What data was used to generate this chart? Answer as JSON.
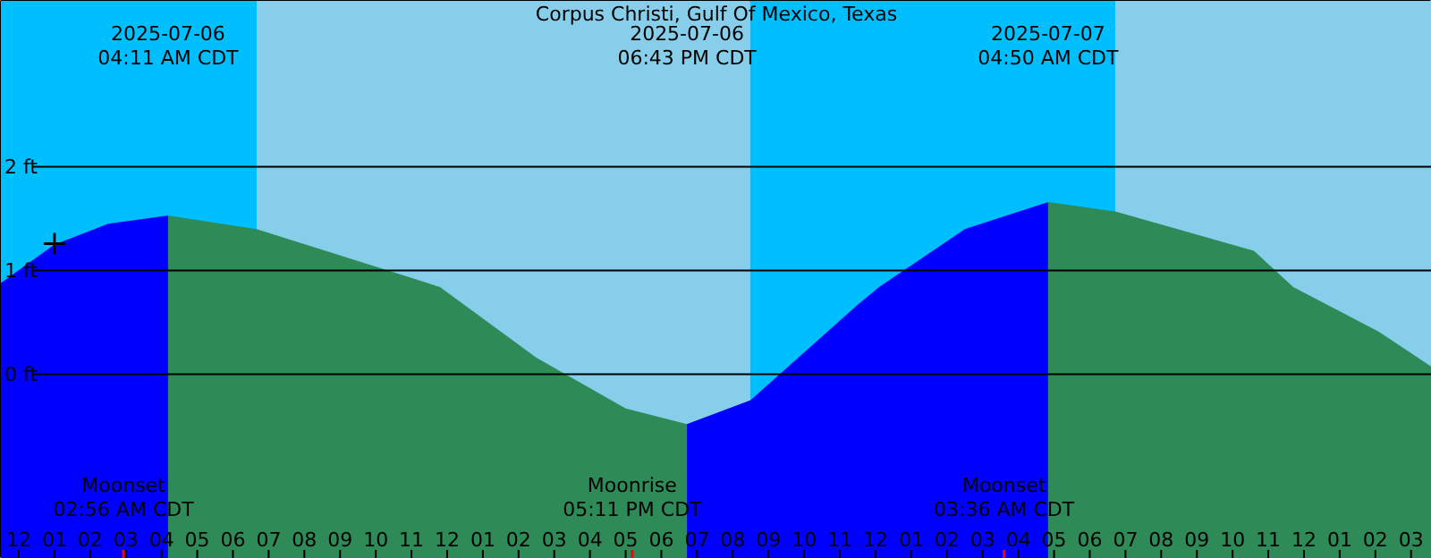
{
  "chart_data": {
    "type": "area",
    "title": "Corpus Christi, Gulf Of Mexico, Texas",
    "xlim": [
      "2025-07-05T23:30",
      "2025-07-07T15:35"
    ],
    "ylim": [
      -1.78,
      3.6
    ],
    "xticks": [
      {
        "value": "2025-07-06T00:00",
        "label": "12"
      },
      {
        "value": "2025-07-06T01:00",
        "label": "01"
      },
      {
        "value": "2025-07-06T02:00",
        "label": "02"
      },
      {
        "value": "2025-07-06T03:00",
        "label": "03"
      },
      {
        "value": "2025-07-06T04:00",
        "label": "04"
      },
      {
        "value": "2025-07-06T05:00",
        "label": "05"
      },
      {
        "value": "2025-07-06T06:00",
        "label": "06"
      },
      {
        "value": "2025-07-06T07:00",
        "label": "07"
      },
      {
        "value": "2025-07-06T08:00",
        "label": "08"
      },
      {
        "value": "2025-07-06T09:00",
        "label": "09"
      },
      {
        "value": "2025-07-06T10:00",
        "label": "10"
      },
      {
        "value": "2025-07-06T11:00",
        "label": "11"
      },
      {
        "value": "2025-07-06T12:00",
        "label": "12"
      },
      {
        "value": "2025-07-06T13:00",
        "label": "01"
      },
      {
        "value": "2025-07-06T14:00",
        "label": "02"
      },
      {
        "value": "2025-07-06T15:00",
        "label": "03"
      },
      {
        "value": "2025-07-06T16:00",
        "label": "04"
      },
      {
        "value": "2025-07-06T17:00",
        "label": "05"
      },
      {
        "value": "2025-07-06T18:00",
        "label": "06"
      },
      {
        "value": "2025-07-06T19:00",
        "label": "07"
      },
      {
        "value": "2025-07-06T20:00",
        "label": "08"
      },
      {
        "value": "2025-07-06T21:00",
        "label": "09"
      },
      {
        "value": "2025-07-06T22:00",
        "label": "10"
      },
      {
        "value": "2025-07-06T23:00",
        "label": "11"
      },
      {
        "value": "2025-07-07T00:00",
        "label": "12"
      },
      {
        "value": "2025-07-07T01:00",
        "label": "01"
      },
      {
        "value": "2025-07-07T02:00",
        "label": "02"
      },
      {
        "value": "2025-07-07T03:00",
        "label": "03"
      },
      {
        "value": "2025-07-07T04:00",
        "label": "04"
      },
      {
        "value": "2025-07-07T05:00",
        "label": "05"
      },
      {
        "value": "2025-07-07T06:00",
        "label": "06"
      },
      {
        "value": "2025-07-07T07:00",
        "label": "07"
      },
      {
        "value": "2025-07-07T08:00",
        "label": "08"
      },
      {
        "value": "2025-07-07T09:00",
        "label": "09"
      },
      {
        "value": "2025-07-07T10:00",
        "label": "10"
      },
      {
        "value": "2025-07-07T11:00",
        "label": "11"
      },
      {
        "value": "2025-07-07T12:00",
        "label": "12"
      },
      {
        "value": "2025-07-07T13:00",
        "label": "01"
      },
      {
        "value": "2025-07-07T14:00",
        "label": "02"
      },
      {
        "value": "2025-07-07T15:00",
        "label": "03"
      }
    ],
    "yticks": [
      {
        "value": 2,
        "label": "2 ft"
      },
      {
        "value": 1,
        "label": "1 ft"
      },
      {
        "value": 0,
        "label": "0 ft"
      }
    ],
    "grid": "y",
    "bands": [
      {
        "axis": "x",
        "from": "2025-07-05T23:30",
        "to": "2025-07-06T06:40",
        "color": "#00bfff"
      },
      {
        "axis": "x",
        "from": "2025-07-06T06:40",
        "to": "2025-07-06T20:29",
        "color": "#87ceeb"
      },
      {
        "axis": "x",
        "from": "2025-07-06T20:29",
        "to": "2025-07-07T06:43",
        "color": "#00bfff"
      },
      {
        "axis": "x",
        "from": "2025-07-07T06:43",
        "to": "2025-07-07T15:35",
        "color": "#87ceeb"
      }
    ],
    "ref_lines": [
      {
        "axis": "x",
        "value": "2025-07-06T02:56",
        "label": "Moonset\n02:56 AM CDT",
        "color": "#ff0000"
      },
      {
        "axis": "x",
        "value": "2025-07-06T17:11",
        "label": "Moonrise\n05:11 PM CDT",
        "color": "#ff0000"
      },
      {
        "axis": "x",
        "value": "2025-07-07T03:36",
        "label": "Moonset\n03:36 AM CDT",
        "color": "#ff0000"
      }
    ],
    "series": [
      {
        "color": "#0000ff",
        "x": [
          "2025-07-05T23:30",
          "2025-07-06T01:00",
          "2025-07-06T02:30",
          "2025-07-06T04:11"
        ],
        "values": [
          0.88,
          1.25,
          1.45,
          1.53
        ]
      },
      {
        "color": "#2e8b57",
        "x": [
          "2025-07-06T04:11",
          "2025-07-06T06:40",
          "2025-07-06T11:00",
          "2025-07-06T11:48",
          "2025-07-06T14:30",
          "2025-07-06T17:00",
          "2025-07-06T18:43"
        ],
        "values": [
          1.53,
          1.4,
          0.93,
          0.84,
          0.16,
          -0.33,
          -0.48
        ]
      },
      {
        "color": "#0000ff",
        "x": [
          "2025-07-06T18:43",
          "2025-07-06T20:30",
          "2025-07-06T23:30",
          "2025-07-07T00:06",
          "2025-07-07T02:30",
          "2025-07-07T04:50"
        ],
        "values": [
          -0.48,
          -0.25,
          0.67,
          0.84,
          1.4,
          1.66
        ]
      },
      {
        "color": "#2e8b57",
        "x": [
          "2025-07-07T04:50",
          "2025-07-07T06:43",
          "2025-07-07T10:36",
          "2025-07-07T11:42",
          "2025-07-07T14:06",
          "2025-07-07T15:35"
        ],
        "values": [
          1.66,
          1.57,
          1.19,
          0.84,
          0.41,
          0.07
        ]
      },
      {
        "type": "scatter",
        "marker": "cross",
        "color": "#000000",
        "x": [
          "2025-07-06T01:00"
        ],
        "values": [
          1.26
        ]
      }
    ],
    "annotations": [
      "2025-07-06\n04:11 AM CDT",
      "2025-07-06\n06:43 PM CDT",
      "2025-07-07\n04:50 AM CDT"
    ]
  }
}
